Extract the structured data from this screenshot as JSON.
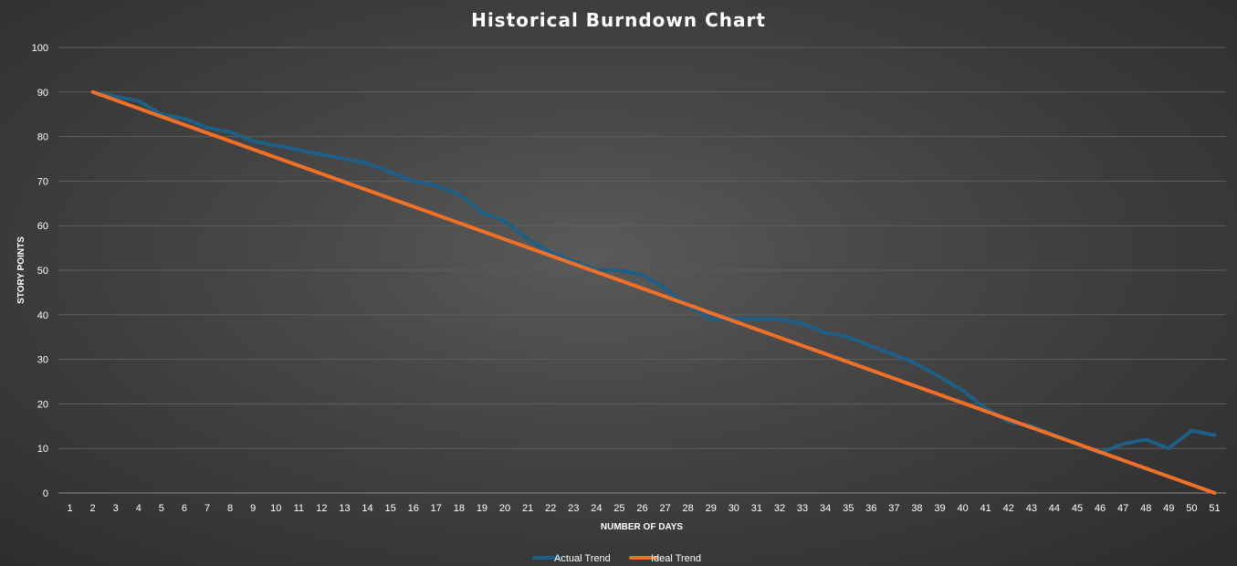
{
  "chart_data": {
    "type": "line",
    "title": "Historical Burndown Chart",
    "xlabel": "NUMBER OF DAYS",
    "ylabel": "STORY POINTS",
    "ylim": [
      0,
      100
    ],
    "yticks": [
      0,
      10,
      20,
      30,
      40,
      50,
      60,
      70,
      80,
      90,
      100
    ],
    "categories": [
      1,
      2,
      3,
      4,
      5,
      6,
      7,
      8,
      9,
      10,
      11,
      12,
      13,
      14,
      15,
      16,
      17,
      18,
      19,
      20,
      21,
      22,
      23,
      24,
      25,
      26,
      27,
      28,
      29,
      30,
      31,
      32,
      33,
      34,
      35,
      36,
      37,
      38,
      39,
      40,
      41,
      42,
      43,
      44,
      45,
      46,
      47,
      48,
      49,
      50,
      51
    ],
    "grid": true,
    "legend_position": "bottom",
    "series": [
      {
        "name": "Actual Trend",
        "color": "#1f5f86",
        "x": [
          2,
          3,
          4,
          5,
          6,
          7,
          8,
          9,
          10,
          11,
          12,
          13,
          14,
          15,
          16,
          17,
          18,
          19,
          20,
          21,
          22,
          23,
          24,
          25,
          26,
          27,
          28,
          29,
          30,
          31,
          32,
          33,
          34,
          35,
          36,
          37,
          38,
          39,
          40,
          41,
          42,
          43,
          44,
          45,
          46,
          47,
          48,
          49,
          50,
          51
        ],
        "values": [
          90,
          89,
          88,
          85,
          84,
          82,
          81,
          79,
          78,
          77,
          76,
          75,
          74,
          72,
          70,
          69,
          67,
          63,
          61,
          57,
          54,
          52,
          50,
          50,
          49,
          46,
          42,
          39,
          39,
          39,
          39,
          38,
          36,
          35,
          33,
          31,
          29,
          26,
          23,
          19,
          16,
          15,
          13,
          11,
          9,
          11,
          12,
          10,
          14,
          13
        ]
      },
      {
        "name": "Ideal Trend",
        "color": "#f0702a",
        "x": [
          2,
          51
        ],
        "values": [
          90,
          0
        ]
      }
    ]
  }
}
